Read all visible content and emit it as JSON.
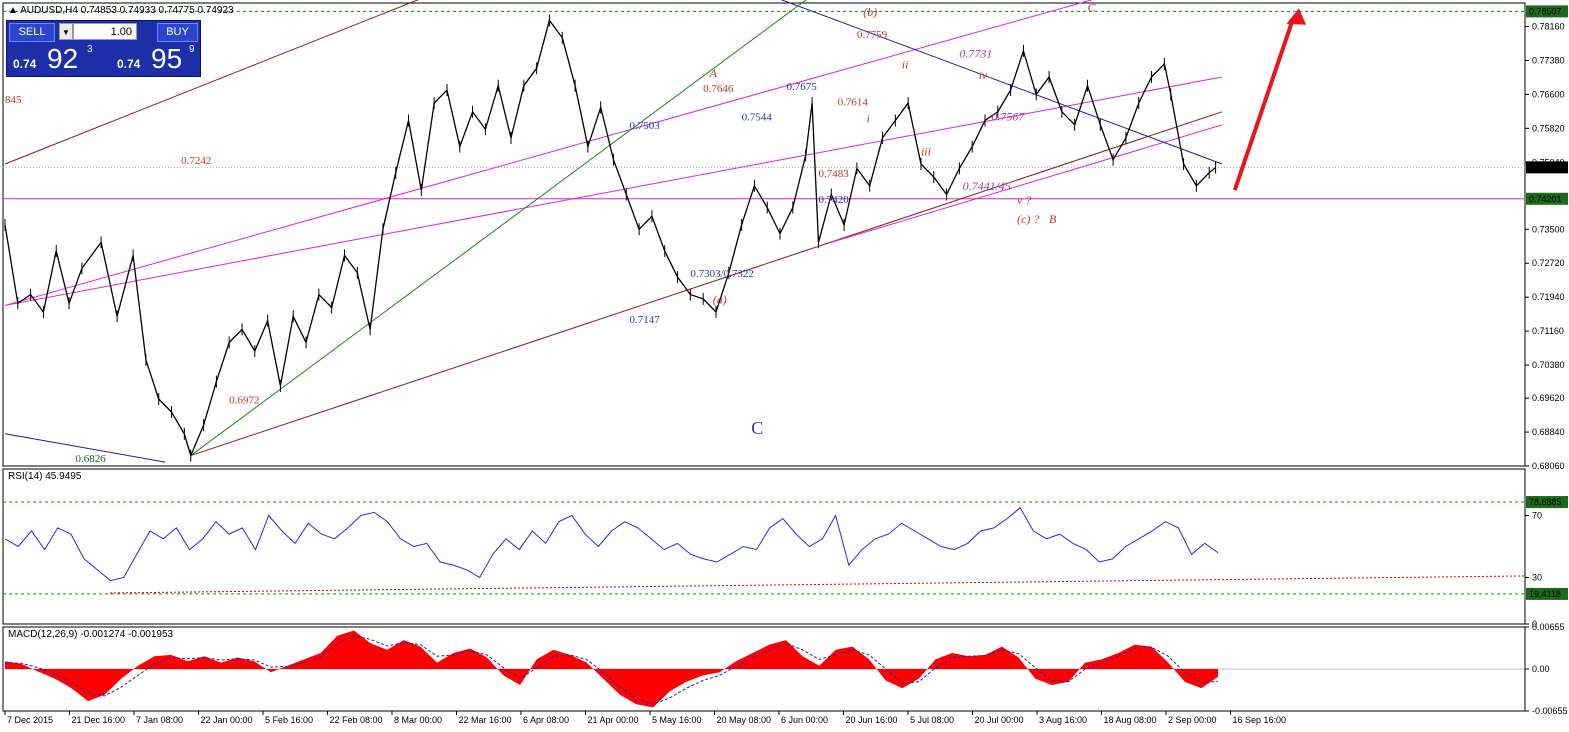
{
  "symbol_header": {
    "symbol": "AUDUSD,H4",
    "ohlc": "0.74853 0.74933 0.74775 0.74923"
  },
  "trade_panel": {
    "sell_label": "SELL",
    "buy_label": "BUY",
    "lot": "1.00",
    "sell_small": "0.74",
    "sell_big": "92",
    "sell_sup": "3",
    "buy_small": "0.74",
    "buy_big": "95",
    "buy_sup": "9"
  },
  "colors": {
    "candle": "#000000",
    "channel_brown": "#8b1a1a",
    "channel_magenta": "#e020e0",
    "trend_blue": "#1e1ea0",
    "trend_green": "#1a8a1a",
    "arrow_red": "#e8141e",
    "rsi_line": "#2a2ad8",
    "macd_hist": "#ff0000",
    "macd_signal": "#2020c0",
    "price_box": "#000000",
    "level_box": "#1a6a1a",
    "label_red": "#c0392b",
    "label_blue": "#2a3aa8",
    "label_purple": "#a040a0"
  },
  "chart_data": [
    {
      "type": "line",
      "title": "AUDUSD,H4",
      "subtitle": "0.74853 0.74933 0.74775 0.74923",
      "note": "price series approximated from H4 candlestick chart; values are closes at sampled points",
      "x": [
        "7 Dec 2015",
        "21 Dec 16:00",
        "7 Jan 08:00",
        "22 Jan 00:00",
        "5 Feb 16:00",
        "22 Feb 08:00",
        "8 Mar 00:00",
        "22 Mar 16:00",
        "6 Apr 08:00",
        "21 Apr 00:00",
        "5 May 16:00",
        "20 May 08:00",
        "6 Jun 00:00",
        "20 Jun 16:00",
        "5 Jul 08:00",
        "20 Jul 00:00",
        "3 Aug 16:00",
        "18 Aug 08:00",
        "2 Sep 00:00",
        "16 Sep 16:00"
      ],
      "series": [
        {
          "values": [
            0.731,
            0.73,
            0.688,
            0.695,
            0.71,
            0.718,
            0.755,
            0.762,
            0.768,
            0.755,
            0.733,
            0.72,
            0.736,
            0.746,
            0.76,
            0.75,
            0.77,
            0.764,
            0.768,
            0.7492
          ]
        }
      ],
      "price_points": [
        {
          "x": 0,
          "y": 0.736
        },
        {
          "x": 4,
          "y": 0.718
        },
        {
          "x": 8,
          "y": 0.72
        },
        {
          "x": 12,
          "y": 0.716
        },
        {
          "x": 16,
          "y": 0.73
        },
        {
          "x": 20,
          "y": 0.718
        },
        {
          "x": 24,
          "y": 0.726
        },
        {
          "x": 30,
          "y": 0.732
        },
        {
          "x": 35,
          "y": 0.715
        },
        {
          "x": 40,
          "y": 0.729
        },
        {
          "x": 44,
          "y": 0.705
        },
        {
          "x": 48,
          "y": 0.696
        },
        {
          "x": 52,
          "y": 0.693
        },
        {
          "x": 56,
          "y": 0.688
        },
        {
          "x": 58,
          "y": 0.683
        },
        {
          "x": 62,
          "y": 0.69
        },
        {
          "x": 66,
          "y": 0.7
        },
        {
          "x": 70,
          "y": 0.709
        },
        {
          "x": 74,
          "y": 0.712
        },
        {
          "x": 78,
          "y": 0.707
        },
        {
          "x": 82,
          "y": 0.714
        },
        {
          "x": 86,
          "y": 0.699
        },
        {
          "x": 90,
          "y": 0.715
        },
        {
          "x": 94,
          "y": 0.709
        },
        {
          "x": 98,
          "y": 0.72
        },
        {
          "x": 102,
          "y": 0.717
        },
        {
          "x": 106,
          "y": 0.729
        },
        {
          "x": 110,
          "y": 0.725
        },
        {
          "x": 114,
          "y": 0.712
        },
        {
          "x": 118,
          "y": 0.735
        },
        {
          "x": 122,
          "y": 0.748
        },
        {
          "x": 126,
          "y": 0.76
        },
        {
          "x": 130,
          "y": 0.744
        },
        {
          "x": 134,
          "y": 0.764
        },
        {
          "x": 138,
          "y": 0.767
        },
        {
          "x": 142,
          "y": 0.754
        },
        {
          "x": 146,
          "y": 0.762
        },
        {
          "x": 150,
          "y": 0.758
        },
        {
          "x": 154,
          "y": 0.768
        },
        {
          "x": 158,
          "y": 0.756
        },
        {
          "x": 162,
          "y": 0.768
        },
        {
          "x": 166,
          "y": 0.772
        },
        {
          "x": 170,
          "y": 0.783
        },
        {
          "x": 174,
          "y": 0.779
        },
        {
          "x": 178,
          "y": 0.768
        },
        {
          "x": 182,
          "y": 0.754
        },
        {
          "x": 186,
          "y": 0.763
        },
        {
          "x": 190,
          "y": 0.751
        },
        {
          "x": 194,
          "y": 0.743
        },
        {
          "x": 198,
          "y": 0.735
        },
        {
          "x": 202,
          "y": 0.738
        },
        {
          "x": 206,
          "y": 0.73
        },
        {
          "x": 210,
          "y": 0.724
        },
        {
          "x": 214,
          "y": 0.72
        },
        {
          "x": 218,
          "y": 0.719
        },
        {
          "x": 222,
          "y": 0.716
        },
        {
          "x": 226,
          "y": 0.725
        },
        {
          "x": 230,
          "y": 0.736
        },
        {
          "x": 234,
          "y": 0.745
        },
        {
          "x": 238,
          "y": 0.74
        },
        {
          "x": 242,
          "y": 0.734
        },
        {
          "x": 246,
          "y": 0.74
        },
        {
          "x": 250,
          "y": 0.752
        },
        {
          "x": 252,
          "y": 0.764
        },
        {
          "x": 254,
          "y": 0.732
        },
        {
          "x": 258,
          "y": 0.743
        },
        {
          "x": 262,
          "y": 0.736
        },
        {
          "x": 266,
          "y": 0.749
        },
        {
          "x": 270,
          "y": 0.745
        },
        {
          "x": 274,
          "y": 0.756
        },
        {
          "x": 278,
          "y": 0.76
        },
        {
          "x": 282,
          "y": 0.764
        },
        {
          "x": 286,
          "y": 0.75
        },
        {
          "x": 290,
          "y": 0.747
        },
        {
          "x": 294,
          "y": 0.743
        },
        {
          "x": 298,
          "y": 0.749
        },
        {
          "x": 302,
          "y": 0.754
        },
        {
          "x": 306,
          "y": 0.76
        },
        {
          "x": 310,
          "y": 0.762
        },
        {
          "x": 314,
          "y": 0.767
        },
        {
          "x": 318,
          "y": 0.776
        },
        {
          "x": 322,
          "y": 0.766
        },
        {
          "x": 326,
          "y": 0.77
        },
        {
          "x": 330,
          "y": 0.762
        },
        {
          "x": 334,
          "y": 0.759
        },
        {
          "x": 338,
          "y": 0.768
        },
        {
          "x": 342,
          "y": 0.759
        },
        {
          "x": 346,
          "y": 0.751
        },
        {
          "x": 350,
          "y": 0.756
        },
        {
          "x": 354,
          "y": 0.764
        },
        {
          "x": 358,
          "y": 0.77
        },
        {
          "x": 362,
          "y": 0.773
        },
        {
          "x": 364,
          "y": 0.766
        },
        {
          "x": 368,
          "y": 0.75
        },
        {
          "x": 372,
          "y": 0.745
        },
        {
          "x": 376,
          "y": 0.748
        },
        {
          "x": 378,
          "y": 0.7492
        }
      ],
      "ylim": [
        0.6806,
        0.787
      ],
      "yticks": [
        "0.78160",
        "0.77380",
        "0.76600",
        "0.75820",
        "0.75040",
        "0.73500",
        "0.72720",
        "0.71940",
        "0.71160",
        "0.70380",
        "0.69620",
        "0.68840",
        "0.68060"
      ],
      "xticks": [
        "7 Dec 2015",
        "21 Dec 16:00",
        "7 Jan 08:00",
        "22 Jan 00:00",
        "5 Feb 16:00",
        "22 Feb 08:00",
        "8 Mar 00:00",
        "22 Mar 16:00",
        "6 Apr 08:00",
        "21 Apr 00:00",
        "5 May 16:00",
        "20 May 08:00",
        "6 Jun 00:00",
        "20 Jun 16:00",
        "5 Jul 08:00",
        "20 Jul 00:00",
        "3 Aug 16:00",
        "18 Aug 08:00",
        "2 Sep 00:00",
        "16 Sep 16:00"
      ],
      "price_boxes": [
        {
          "label": "0.78507",
          "kind": "level",
          "value": 0.78507
        },
        {
          "label": "0.74923",
          "kind": "price",
          "value": 0.74923
        },
        {
          "label": "0.74201",
          "kind": "level",
          "value": 0.74201
        }
      ],
      "annotations": [
        {
          "text": "845",
          "color": "label_red",
          "style": "plain"
        },
        {
          "text": "0.7242",
          "color": "label_red",
          "style": "plain"
        },
        {
          "text": "0.6972",
          "color": "label_red",
          "style": "plain"
        },
        {
          "text": "0.6826",
          "color": "level_box",
          "style": "plain"
        },
        {
          "text": "A",
          "color": "label_red",
          "style": "italic"
        },
        {
          "text": "0.7646",
          "color": "label_red",
          "style": "plain"
        },
        {
          "text": "0.7675",
          "color": "label_blue",
          "style": "plain"
        },
        {
          "text": "0.7503",
          "color": "label_blue",
          "style": "plain"
        },
        {
          "text": "0.7544",
          "color": "label_blue",
          "style": "plain"
        },
        {
          "text": "0.7303/0.7322",
          "color": "label_blue",
          "style": "plain"
        },
        {
          "text": "0.7147",
          "color": "label_blue",
          "style": "plain"
        },
        {
          "text": "(a)",
          "color": "label_red",
          "style": "italic"
        },
        {
          "text": "C",
          "color": "label_blue",
          "style": "big"
        },
        {
          "text": "(b)",
          "color": "label_red",
          "style": "italic"
        },
        {
          "text": "0.7759",
          "color": "label_red",
          "style": "plain"
        },
        {
          "text": "0.7614",
          "color": "label_red",
          "style": "plain"
        },
        {
          "text": "0.7483",
          "color": "label_red",
          "style": "plain"
        },
        {
          "text": "0.7420",
          "color": "label_blue",
          "style": "plain"
        },
        {
          "text": "ii",
          "color": "label_red",
          "style": "italic"
        },
        {
          "text": "i",
          "color": "label_red",
          "style": "italic"
        },
        {
          "text": "iii",
          "color": "label_red",
          "style": "italic"
        },
        {
          "text": "0.7731",
          "color": "label_purple",
          "style": "italic"
        },
        {
          "text": "iv",
          "color": "label_red",
          "style": "italic"
        },
        {
          "text": "0.7567",
          "color": "label_purple",
          "style": "italic"
        },
        {
          "text": "0.7441/45",
          "color": "label_purple",
          "style": "italic"
        },
        {
          "text": "v ?",
          "color": "label_red",
          "style": "italic"
        },
        {
          "text": "(c) ?",
          "color": "label_red",
          "style": "italic"
        },
        {
          "text": "B",
          "color": "label_red",
          "style": "italic"
        },
        {
          "text": "C",
          "color": "label_red",
          "style": "italic"
        }
      ]
    },
    {
      "type": "line",
      "title": "RSI(14) 45.9495",
      "ylim": [
        0,
        100
      ],
      "yticks": [
        "70",
        "30",
        "0"
      ],
      "levels": [
        {
          "label": "78.6885",
          "value": 78.6885
        },
        {
          "label": "19.4118",
          "value": 19.4118
        }
      ],
      "series": [
        {
          "values": [
            55,
            50,
            60,
            48,
            62,
            58,
            42,
            35,
            28,
            30,
            45,
            60,
            55,
            62,
            48,
            55,
            66,
            58,
            62,
            48,
            70,
            60,
            52,
            65,
            58,
            55,
            62,
            70,
            72,
            66,
            55,
            50,
            52,
            40,
            38,
            35,
            30,
            45,
            55,
            48,
            60,
            52,
            66,
            70,
            58,
            50,
            60,
            66,
            62,
            55,
            48,
            52,
            45,
            42,
            40,
            45,
            50,
            48,
            62,
            68,
            58,
            50,
            55,
            70,
            38,
            48,
            55,
            58,
            65,
            60,
            55,
            50,
            48,
            52,
            60,
            62,
            68,
            75,
            60,
            55,
            58,
            52,
            48,
            40,
            42,
            50,
            55,
            60,
            66,
            62,
            45,
            52,
            46
          ]
        }
      ]
    },
    {
      "type": "area",
      "title": "MACD(12,26,9) -0.001274 -0.001953",
      "ylim": [
        -0.00655,
        0.00655
      ],
      "yticks": [
        "0.00655",
        "0.00",
        "-0.00655"
      ],
      "series": [
        {
          "name": "MACD",
          "values": [
            0.0012,
            0.0008,
            -0.0004,
            -0.0015,
            -0.003,
            -0.005,
            -0.004,
            -0.0015,
            0.0005,
            0.002,
            0.0022,
            0.0012,
            0.002,
            0.001,
            0.0018,
            0.0012,
            -0.0005,
            0.0005,
            0.0015,
            0.0025,
            0.0052,
            0.006,
            0.004,
            0.003,
            0.0045,
            0.0035,
            0.001,
            0.0025,
            0.0032,
            0.0018,
            -0.001,
            -0.0025,
            0.0015,
            0.003,
            0.0022,
            0.001,
            -0.0015,
            -0.004,
            -0.0055,
            -0.006,
            -0.0035,
            -0.002,
            -0.001,
            -0.0005,
            0.0012,
            0.0025,
            0.0038,
            0.0045,
            0.002,
            0.0005,
            0.003,
            0.0035,
            0.0015,
            -0.0018,
            -0.003,
            -0.0015,
            0.0015,
            0.0025,
            0.002,
            0.0022,
            0.0035,
            0.0018,
            -0.0015,
            -0.0025,
            -0.002,
            0.001,
            0.0015,
            0.0025,
            0.0038,
            0.0035,
            0.001,
            -0.002,
            -0.003,
            -0.0012
          ]
        },
        {
          "name": "Signal",
          "values": [
            0.001,
            0.0009,
            0.0002,
            -0.0008,
            -0.002,
            -0.0038,
            -0.0042,
            -0.0028,
            -0.001,
            0.0008,
            0.0018,
            0.0016,
            0.0018,
            0.0014,
            0.0016,
            0.0014,
            0.0003,
            0.0004,
            0.001,
            0.0018,
            0.004,
            0.0052,
            0.0046,
            0.0036,
            0.0041,
            0.0038,
            0.002,
            0.0022,
            0.0028,
            0.0022,
            0.0002,
            -0.0015,
            0.0002,
            0.002,
            0.0022,
            0.0015,
            -0.0005,
            -0.0028,
            -0.0045,
            -0.0055,
            -0.0045,
            -0.003,
            -0.0018,
            -0.001,
            0.0004,
            0.0018,
            0.003,
            0.004,
            0.003,
            0.0015,
            0.0022,
            0.003,
            0.0022,
            0.0,
            -0.0022,
            -0.002,
            0.0002,
            0.0018,
            0.002,
            0.0021,
            0.003,
            0.0024,
            0.0002,
            -0.0018,
            -0.002,
            0.0,
            0.001,
            0.002,
            0.0032,
            0.0034,
            0.002,
            -0.0005,
            -0.0022,
            -0.0019
          ]
        }
      ]
    }
  ]
}
